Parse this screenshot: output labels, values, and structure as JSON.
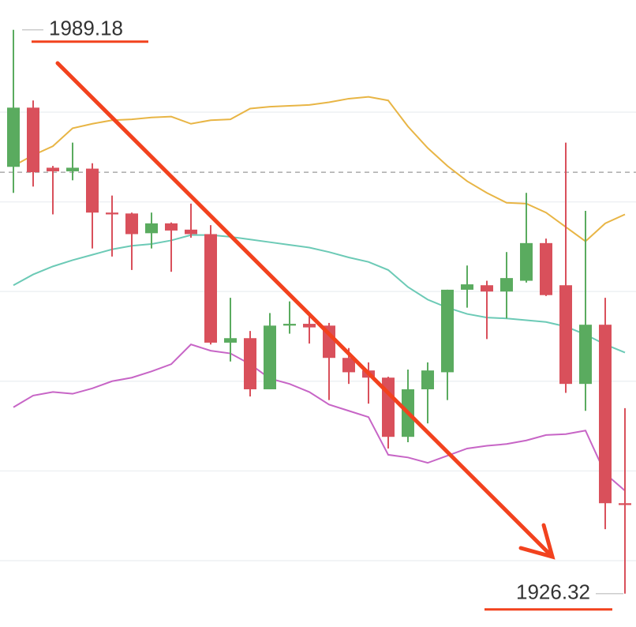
{
  "chart_data": {
    "type": "candlestick",
    "ylim": [
      1922.6,
      1992.5
    ],
    "yticks": [
      1930,
      1940,
      1950,
      1960,
      1970,
      1980
    ],
    "grid": true,
    "up_color": "#5aab5f",
    "down_color": "#d9505b",
    "price_line": 1973.3,
    "open": [
      1973.9,
      1980.5,
      1973.8,
      1973.4,
      1973.7,
      1968.8,
      1968.7,
      1966.5,
      1967.6,
      1966.9,
      1966.4,
      1954.3,
      1954.8,
      1949.1,
      1956.2,
      1956.4,
      1956.2,
      1952.6,
      1951.2,
      1950.4,
      1943.8,
      1949.1,
      1951.0,
      1960.2,
      1960.7,
      1960.0,
      1961.2,
      1965.4,
      1960.7,
      1949.7,
      1956.3,
      1936.4
    ],
    "high": [
      1989.18,
      1981.3,
      1974.0,
      1976.6,
      1974.3,
      1970.7,
      1968.8,
      1968.8,
      1967.7,
      1969.8,
      1967.4,
      1959.3,
      1955.6,
      1957.6,
      1958.9,
      1957.3,
      1956.5,
      1953.7,
      1952.1,
      1950.5,
      1951.3,
      1952.1,
      1960.2,
      1962.9,
      1961.2,
      1964.4,
      1971.0,
      1965.9,
      1976.6,
      1969.0,
      1959.3,
      1947.0
    ],
    "low": [
      1971.0,
      1971.7,
      1968.6,
      1972.4,
      1964.8,
      1963.9,
      1962.4,
      1964.8,
      1962.2,
      1966.0,
      1954.1,
      1952.2,
      1948.3,
      1949.1,
      1955.3,
      1954.2,
      1947.9,
      1949.7,
      1947.5,
      1942.5,
      1943.2,
      1945.3,
      1947.9,
      1958.2,
      1954.7,
      1957.0,
      1961.0,
      1959.5,
      1948.7,
      1946.7,
      1933.5,
      1926.32
    ],
    "close": [
      1980.5,
      1973.3,
      1973.4,
      1973.8,
      1968.8,
      1968.6,
      1966.4,
      1967.6,
      1966.8,
      1966.4,
      1954.3,
      1954.8,
      1949.1,
      1956.2,
      1956.4,
      1956.0,
      1952.6,
      1951.0,
      1950.4,
      1943.8,
      1949.1,
      1951.2,
      1960.2,
      1960.8,
      1960.0,
      1961.5,
      1965.4,
      1959.6,
      1949.7,
      1956.3,
      1936.4,
      1936.2
    ],
    "bands": [
      {
        "color": "#e8b545",
        "values": [
          1974.0,
          1975.2,
          1976.2,
          1978.2,
          1978.7,
          1979.1,
          1979.2,
          1979.4,
          1979.5,
          1978.7,
          1979.1,
          1979.2,
          1980.4,
          1980.6,
          1980.7,
          1980.8,
          1981.1,
          1981.5,
          1981.7,
          1981.3,
          1978.4,
          1976.0,
          1974.0,
          1972.3,
          1971.0,
          1969.9,
          1969.8,
          1968.8,
          1967.2,
          1965.6,
          1967.6,
          1968.6
        ]
      },
      {
        "color": "#6ccab6",
        "values": [
          1960.7,
          1961.9,
          1962.8,
          1963.5,
          1964.1,
          1964.7,
          1965.1,
          1965.3,
          1965.7,
          1966.3,
          1966.3,
          1966.1,
          1965.8,
          1965.5,
          1965.2,
          1964.9,
          1964.4,
          1963.8,
          1963.3,
          1962.4,
          1960.5,
          1959.1,
          1958.2,
          1957.5,
          1957.1,
          1957.0,
          1956.8,
          1956.6,
          1956.1,
          1955.2,
          1954.1,
          1953.2
        ]
      },
      {
        "color": "#c765c6",
        "values": [
          1947.1,
          1948.4,
          1948.8,
          1948.6,
          1949.2,
          1950.0,
          1950.4,
          1951.1,
          1951.9,
          1954.1,
          1953.4,
          1953.1,
          1951.9,
          1950.3,
          1949.7,
          1948.8,
          1947.4,
          1946.7,
          1946.0,
          1941.8,
          1941.5,
          1940.9,
          1941.7,
          1942.5,
          1942.8,
          1943.0,
          1943.4,
          1944.0,
          1944.1,
          1944.5,
          1939.7,
          1937.8
        ]
      }
    ],
    "annotations": [
      {
        "value": 1989.18,
        "label": "1989.18"
      },
      {
        "value": 1926.32,
        "label": "1926.32"
      }
    ]
  }
}
